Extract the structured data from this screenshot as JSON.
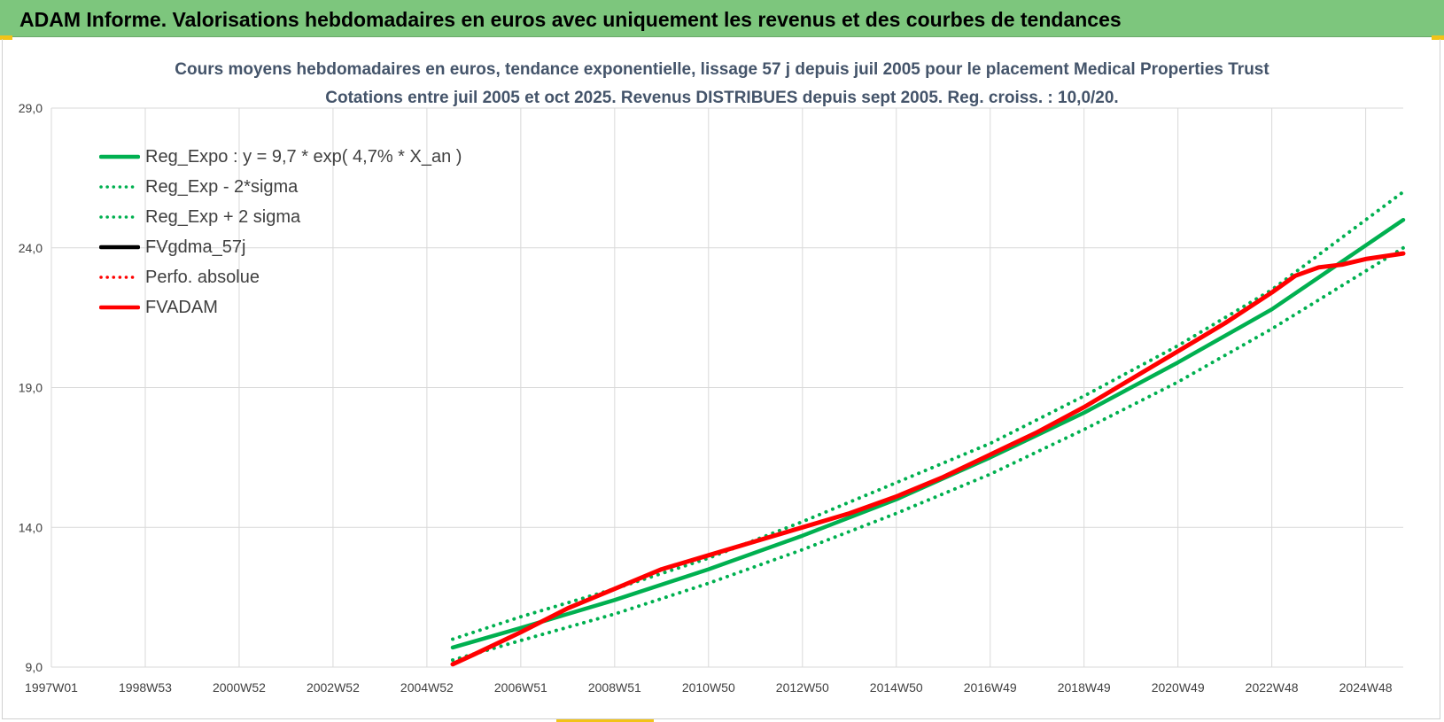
{
  "header": {
    "title": "ADAM Informe. Valorisations hebdomadaires en euros avec uniquement les revenus et des courbes de tendances"
  },
  "colors": {
    "banner": "#7dc67d",
    "trend": "#00b050",
    "fvadam": "#ff0000",
    "grid": "#d9d9d9"
  },
  "chart_data": {
    "type": "line",
    "title": "Cours moyens hebdomadaires en euros, tendance exponentielle, lissage 57 j depuis juil 2005 pour le placement Medical Properties Trust",
    "subtitle": "Cotations entre juil 2005 et oct 2025. Revenus DISTRIBUES depuis sept 2005. Reg. croiss. : 10,0/20.",
    "xlabel": "",
    "ylabel": "",
    "ylim": [
      9.0,
      29.0
    ],
    "xlim": [
      1997.0,
      2025.8
    ],
    "y_ticks": [
      "9,0",
      "14,0",
      "19,0",
      "24,0",
      "29,0"
    ],
    "x_tick_labels": [
      "1997W01",
      "1998W53",
      "2000W52",
      "2002W52",
      "2004W52",
      "2006W51",
      "2008W51",
      "2010W50",
      "2012W50",
      "2014W50",
      "2016W49",
      "2018W49",
      "2020W49",
      "2022W48",
      "2024W48"
    ],
    "x_tick_years": [
      1997.0,
      1999.0,
      2001.0,
      2003.0,
      2005.0,
      2007.0,
      2009.0,
      2011.0,
      2013.0,
      2015.0,
      2017.0,
      2019.0,
      2021.0,
      2023.0,
      2025.0
    ],
    "grid": true,
    "legend_position": "top-left",
    "legend": [
      {
        "label": "Reg_Expo : y = 9,7 * exp( 4,7% *  X_an )",
        "style": "solid",
        "color": "#00b050"
      },
      {
        "label": "Reg_Exp - 2*sigma",
        "style": "dotted",
        "color": "#00b050"
      },
      {
        "label": "Reg_Exp + 2 sigma",
        "style": "dotted",
        "color": "#00b050"
      },
      {
        "label": "FVgdma_57j",
        "style": "solid",
        "color": "#000000"
      },
      {
        "label": "Perfo. absolue",
        "style": "dotted",
        "color": "#ff0000"
      },
      {
        "label": "FVADAM",
        "style": "solid",
        "color": "#ff0000"
      }
    ],
    "series": [
      {
        "name": "Reg_Expo : y = 9,7 * exp( 4,7% *  X_an )",
        "x": [
          2005.55,
          2007,
          2009,
          2011,
          2013,
          2015,
          2017,
          2019,
          2021,
          2023,
          2025.8
        ],
        "y": [
          9.7,
          10.4,
          11.4,
          12.5,
          13.7,
          15.0,
          16.5,
          18.1,
          19.9,
          21.8,
          25.0
        ]
      },
      {
        "name": "Reg_Exp - 2*sigma",
        "x": [
          2005.55,
          2007,
          2009,
          2011,
          2013,
          2015,
          2017,
          2019,
          2021,
          2023,
          2025.8
        ],
        "y": [
          9.25,
          9.95,
          10.9,
          12.0,
          13.2,
          14.5,
          15.9,
          17.5,
          19.2,
          21.1,
          24.0
        ]
      },
      {
        "name": "Reg_Exp + 2 sigma",
        "x": [
          2005.55,
          2007,
          2009,
          2011,
          2013,
          2015,
          2017,
          2019,
          2021,
          2023,
          2025.8
        ],
        "y": [
          10.0,
          10.8,
          11.8,
          12.9,
          14.2,
          15.6,
          17.0,
          18.7,
          20.5,
          22.5,
          26.0
        ]
      },
      {
        "name": "FVADAM",
        "x": [
          2005.55,
          2006,
          2007,
          2008,
          2009,
          2010,
          2011,
          2012,
          2013,
          2014,
          2015,
          2016,
          2017,
          2018,
          2019,
          2020,
          2021,
          2022,
          2023,
          2023.5,
          2024,
          2024.5,
          2025,
          2025.8
        ],
        "y": [
          9.1,
          9.45,
          10.25,
          11.1,
          11.8,
          12.5,
          13.0,
          13.5,
          14.0,
          14.5,
          15.1,
          15.8,
          16.6,
          17.4,
          18.3,
          19.3,
          20.3,
          21.3,
          22.4,
          23.0,
          23.3,
          23.4,
          23.6,
          23.8
        ]
      }
    ]
  }
}
